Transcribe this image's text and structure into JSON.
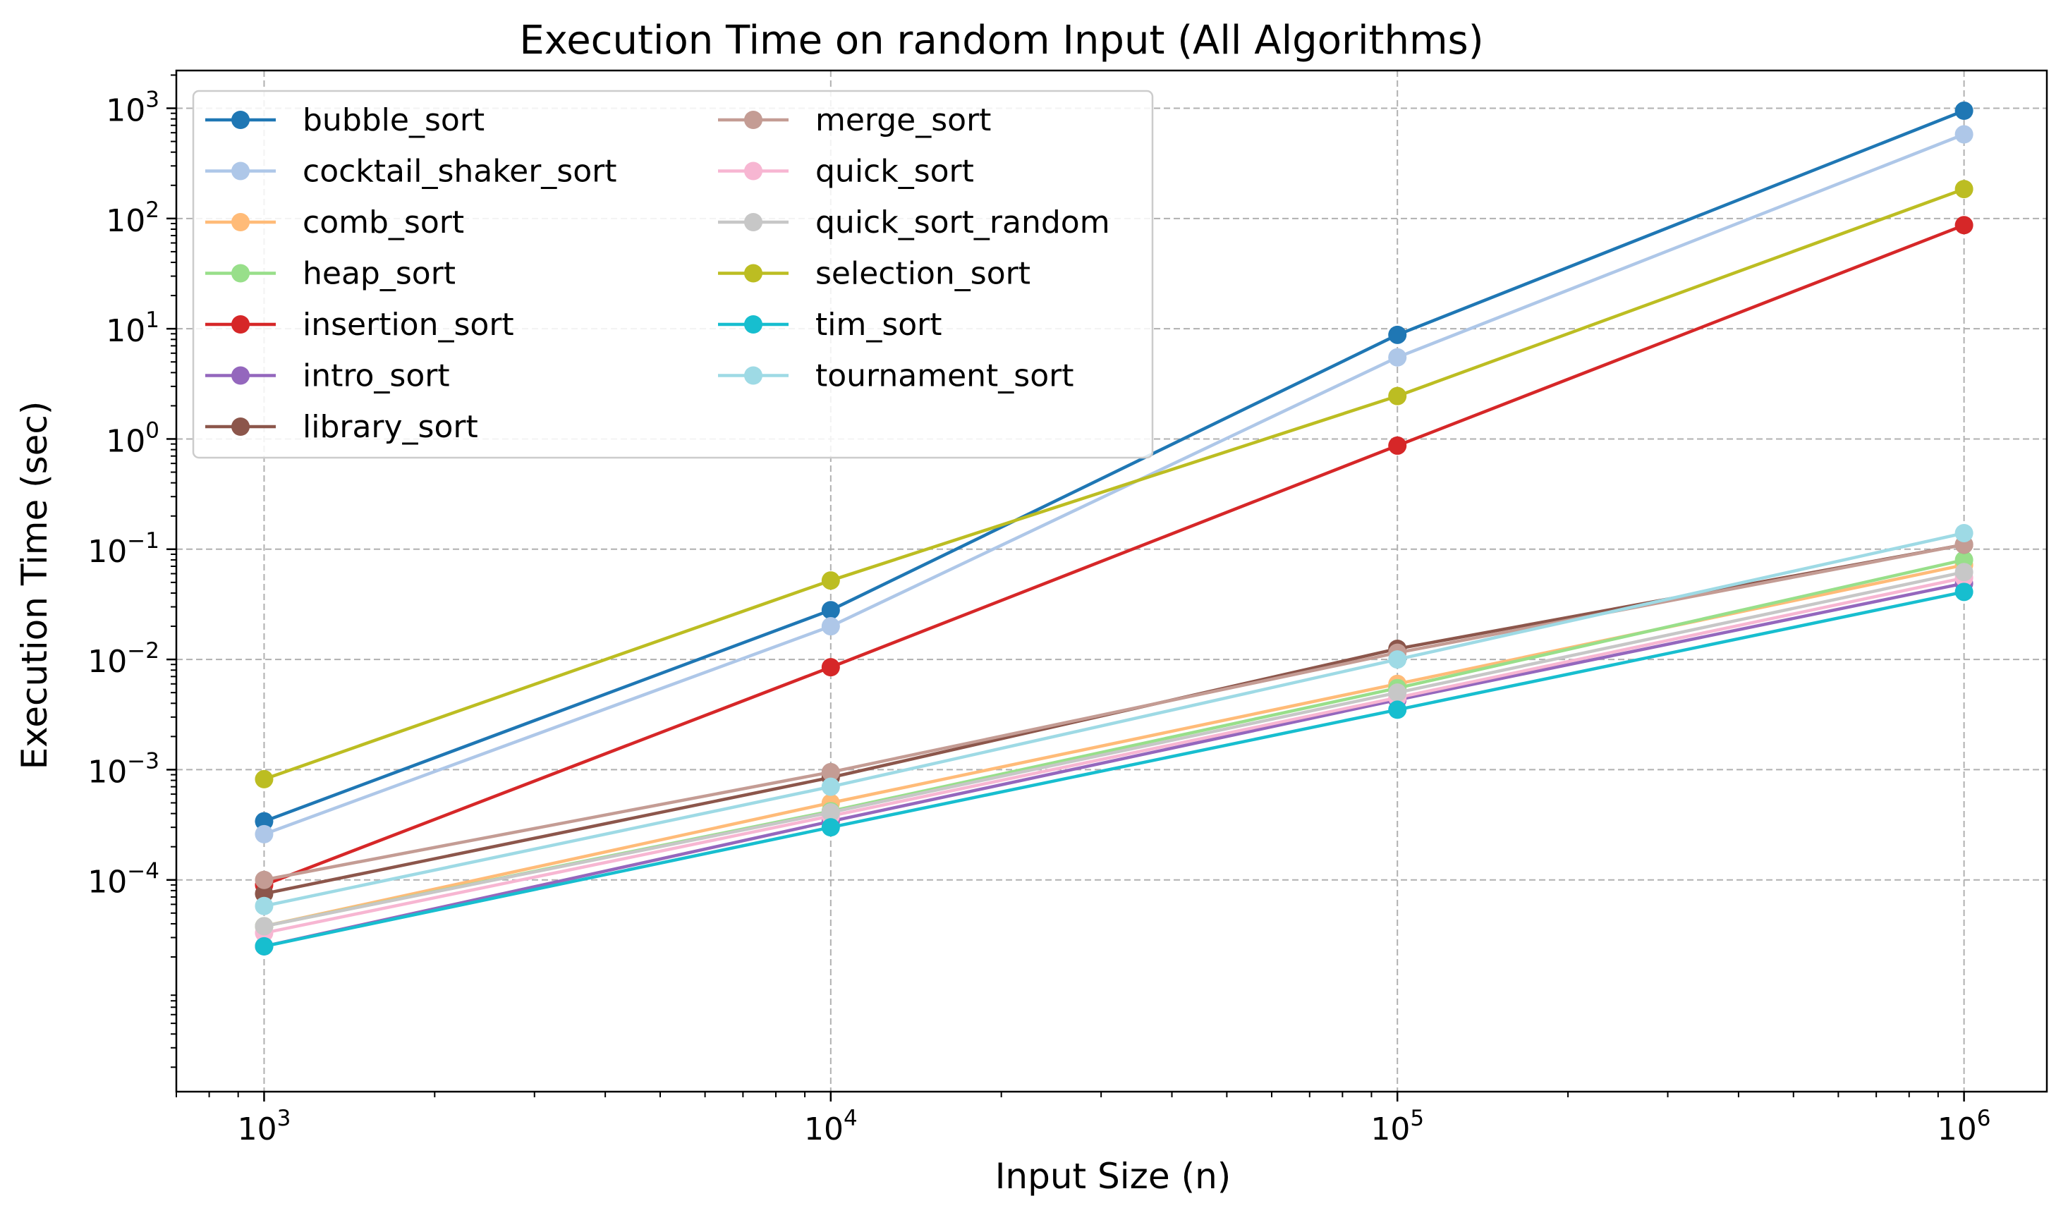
{
  "chart_data": {
    "type": "line",
    "title": "Execution Time on random Input (All Algorithms)",
    "xlabel": "Input Size (n)",
    "ylabel": "Execution Time (sec)",
    "xscale": "log",
    "yscale": "log",
    "xlim": [
      700,
      1400000
    ],
    "ylim": [
      1.2e-06,
      2200
    ],
    "x": [
      1000,
      10000,
      100000,
      1000000
    ],
    "x_ticks": [
      {
        "value": 1000,
        "base": "10",
        "exp": "3"
      },
      {
        "value": 10000,
        "base": "10",
        "exp": "4"
      },
      {
        "value": 100000,
        "base": "10",
        "exp": "5"
      },
      {
        "value": 1000000,
        "base": "10",
        "exp": "6"
      }
    ],
    "y_ticks": [
      {
        "value": 0.0001,
        "base": "10",
        "exp": "−4"
      },
      {
        "value": 0.001,
        "base": "10",
        "exp": "−3"
      },
      {
        "value": 0.01,
        "base": "10",
        "exp": "−2"
      },
      {
        "value": 0.1,
        "base": "10",
        "exp": "−1"
      },
      {
        "value": 1,
        "base": "10",
        "exp": "0"
      },
      {
        "value": 10,
        "base": "10",
        "exp": "1"
      },
      {
        "value": 100,
        "base": "10",
        "exp": "2"
      },
      {
        "value": 1000,
        "base": "10",
        "exp": "3"
      }
    ],
    "grid": true,
    "legend_position": "upper-left",
    "legend_columns": 2,
    "series": [
      {
        "name": "bubble_sort",
        "color": "#1f77b4",
        "values": [
          0.00034,
          0.028,
          8.8,
          950
        ]
      },
      {
        "name": "cocktail_shaker_sort",
        "color": "#aec7e8",
        "values": [
          0.00026,
          0.02,
          5.5,
          580
        ]
      },
      {
        "name": "comb_sort",
        "color": "#ffbb78",
        "values": [
          3.8e-05,
          0.0005,
          0.006,
          0.072
        ]
      },
      {
        "name": "heap_sort",
        "color": "#98df8a",
        "values": [
          3.8e-05,
          0.00042,
          0.0055,
          0.08
        ]
      },
      {
        "name": "insertion_sort",
        "color": "#d62728",
        "values": [
          9e-05,
          0.0085,
          0.87,
          87
        ]
      },
      {
        "name": "intro_sort",
        "color": "#9467bd",
        "values": [
          2.5e-05,
          0.00034,
          0.0043,
          0.049
        ]
      },
      {
        "name": "library_sort",
        "color": "#8c564b",
        "values": [
          7.5e-05,
          0.00085,
          0.0125,
          0.11
        ]
      },
      {
        "name": "merge_sort",
        "color": "#c49c94",
        "values": [
          0.0001,
          0.00095,
          0.0115,
          0.11
        ]
      },
      {
        "name": "quick_sort",
        "color": "#f7b6d2",
        "values": [
          3.3e-05,
          0.00038,
          0.0045,
          0.055
        ]
      },
      {
        "name": "quick_sort_random",
        "color": "#c7c7c7",
        "values": [
          3.8e-05,
          0.00041,
          0.005,
          0.062
        ]
      },
      {
        "name": "selection_sort",
        "color": "#bcbd22",
        "values": [
          0.00082,
          0.052,
          2.45,
          185
        ]
      },
      {
        "name": "tim_sort",
        "color": "#17becf",
        "values": [
          2.5e-05,
          0.0003,
          0.0035,
          0.041
        ]
      },
      {
        "name": "tournament_sort",
        "color": "#9edae5",
        "values": [
          5.8e-05,
          0.0007,
          0.01,
          0.14
        ]
      }
    ]
  }
}
